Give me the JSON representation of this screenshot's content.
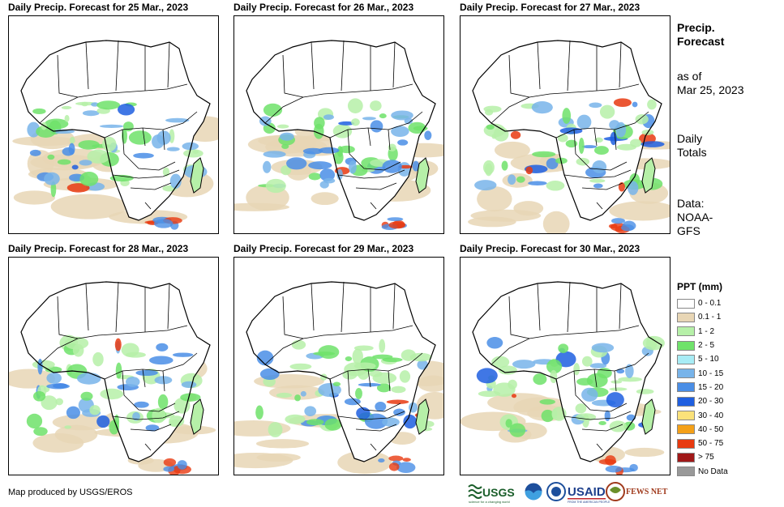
{
  "panels": [
    {
      "title": "Daily Precip. Forecast for 25 Mar., 2023"
    },
    {
      "title": "Daily Precip. Forecast for 26 Mar., 2023"
    },
    {
      "title": "Daily Precip. Forecast for 27 Mar., 2023"
    },
    {
      "title": "Daily Precip. Forecast for 28 Mar., 2023"
    },
    {
      "title": "Daily Precip. Forecast for 29 Mar., 2023"
    },
    {
      "title": "Daily Precip. Forecast for 30 Mar., 2023"
    }
  ],
  "side": {
    "title_line1": "Precip.",
    "title_line2": "Forecast",
    "asof_line1": "as of",
    "asof_line2": "Mar 25, 2023",
    "totals_line1": "Daily",
    "totals_line2": "Totals",
    "data_line1": "Data:",
    "data_line2": "NOAA-",
    "data_line3": "GFS"
  },
  "legend": {
    "title": "PPT (mm)",
    "items": [
      {
        "label": "0 - 0.1",
        "color": "#ffffff"
      },
      {
        "label": "0.1 - 1",
        "color": "#e8d6b5"
      },
      {
        "label": "1 - 2",
        "color": "#b6f0a8"
      },
      {
        "label": "2 - 5",
        "color": "#6fe26a"
      },
      {
        "label": "5 - 10",
        "color": "#a8ecf5"
      },
      {
        "label": "10 - 15",
        "color": "#78b4ea"
      },
      {
        "label": "15 - 20",
        "color": "#4a8ee6"
      },
      {
        "label": "20 - 30",
        "color": "#1f5fe0"
      },
      {
        "label": "30 - 40",
        "color": "#fbe27a"
      },
      {
        "label": "40 - 50",
        "color": "#f4a018"
      },
      {
        "label": "50 - 75",
        "color": "#e83a10"
      },
      {
        "label": "> 75",
        "color": "#a01818"
      },
      {
        "label": "No Data",
        "color": "#999999"
      }
    ]
  },
  "credit": "Map produced by USGS/EROS",
  "logos": {
    "usgs": "USGS",
    "usgs_tagline": "science for a changing world",
    "usaid": "USAID",
    "usaid_tagline": "FROM THE AMERICAN PEOPLE",
    "fewsnet": "FEWS NET"
  }
}
